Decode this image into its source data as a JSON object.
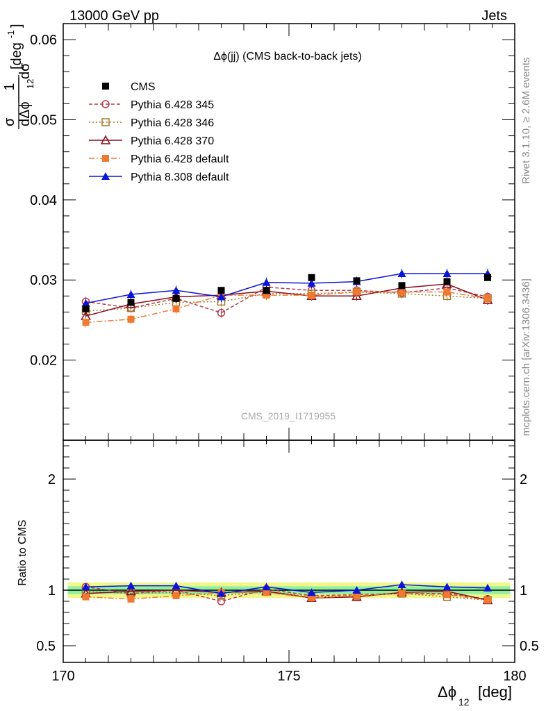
{
  "header": {
    "left": "13000 GeV pp",
    "right": "Jets"
  },
  "side": {
    "top": "Rivet 3.1.10, ≥ 2.6M events",
    "bottom": "mcplots.cern.ch [arXiv:1306.3436]"
  },
  "watermark": "CMS_2019_I1719955",
  "chart_data": [
    {
      "type": "line",
      "title": "Δϕ(jj) (CMS back-to-back jets)",
      "ylabel": "1/σ dσ/dΔϕ_12 [deg^-1]",
      "xlabel": "Δϕ_12 [deg]",
      "xlim": [
        170,
        180
      ],
      "ylim": [
        0.01,
        0.062
      ],
      "yticks": [
        "0.02",
        "0.03",
        "0.04",
        "0.05",
        "0.06"
      ],
      "xticks": [
        "170",
        "175",
        "180"
      ],
      "legend_position": "top-left",
      "x": [
        170.5,
        171.5,
        172.5,
        173.5,
        174.5,
        175.5,
        176.5,
        177.5,
        178.5,
        179.4
      ],
      "series": [
        {
          "name": "CMS",
          "style": "data",
          "color": "#000000",
          "marker": "square",
          "values": [
            0.0264,
            0.0272,
            0.0277,
            0.0287,
            0.0287,
            0.0303,
            0.0299,
            0.0293,
            0.0298,
            0.0303
          ]
        },
        {
          "name": "Pythia 6.428 345",
          "style": "dashed",
          "color": "#b83a4a",
          "marker": "circle-open",
          "values": [
            0.0273,
            0.0265,
            0.0277,
            0.0259,
            0.0291,
            0.0287,
            0.0287,
            0.0284,
            0.029,
            0.0279
          ]
        },
        {
          "name": "Pythia 6.428 346",
          "style": "dotted",
          "color": "#a07828",
          "marker": "square-open",
          "values": [
            0.0261,
            0.0265,
            0.0272,
            0.0273,
            0.0283,
            0.0283,
            0.0285,
            0.0283,
            0.028,
            0.0277
          ]
        },
        {
          "name": "Pythia 6.428 370",
          "style": "solid",
          "color": "#8b0a1a",
          "marker": "triangle-open",
          "values": [
            0.0255,
            0.027,
            0.0279,
            0.0281,
            0.0286,
            0.028,
            0.028,
            0.029,
            0.0295,
            0.0275
          ]
        },
        {
          "name": "Pythia 6.428 default",
          "style": "dashdot",
          "color": "#f07830",
          "marker": "square",
          "values": [
            0.0247,
            0.0251,
            0.0264,
            0.0281,
            0.0281,
            0.0281,
            0.0285,
            0.0285,
            0.0285,
            0.0277
          ]
        },
        {
          "name": "Pythia 8.308 default",
          "style": "solid",
          "color": "#0a14d8",
          "marker": "triangle",
          "values": [
            0.0271,
            0.0282,
            0.0287,
            0.0279,
            0.0297,
            0.0296,
            0.0298,
            0.0308,
            0.0308,
            0.0308
          ]
        }
      ]
    },
    {
      "type": "line",
      "ylabel": "Ratio to CMS",
      "xlabel": "Δϕ_12 [deg]",
      "xlim": [
        170,
        180
      ],
      "ylim": [
        0.35,
        2.35
      ],
      "yticks": [
        "0.5",
        "1",
        "2"
      ],
      "x": [
        170.5,
        171.5,
        172.5,
        173.5,
        174.5,
        175.5,
        176.5,
        177.5,
        178.5,
        179.4
      ],
      "band_inner": 0.035,
      "band_outer": 0.07,
      "band_colors": {
        "inner": "#8ef0a0",
        "outer": "#f2f78a"
      },
      "series": [
        {
          "name": "Pythia 6.428 345",
          "values": [
            1.03,
            0.97,
            1.0,
            0.9,
            1.01,
            0.95,
            0.96,
            0.97,
            0.97,
            0.92
          ]
        },
        {
          "name": "Pythia 6.428 346",
          "values": [
            0.99,
            0.97,
            0.98,
            0.95,
            0.99,
            0.94,
            0.95,
            0.97,
            0.94,
            0.91
          ]
        },
        {
          "name": "Pythia 6.428 370",
          "values": [
            0.97,
            0.99,
            1.0,
            0.98,
            0.99,
            0.93,
            0.94,
            0.98,
            0.99,
            0.91
          ]
        },
        {
          "name": "Pythia 6.428 default",
          "values": [
            0.94,
            0.92,
            0.95,
            0.98,
            0.98,
            0.93,
            0.95,
            0.97,
            0.96,
            0.91
          ]
        },
        {
          "name": "Pythia 8.308 default",
          "values": [
            1.03,
            1.04,
            1.04,
            0.97,
            1.03,
            0.98,
            1.0,
            1.05,
            1.03,
            1.02
          ]
        }
      ]
    }
  ]
}
